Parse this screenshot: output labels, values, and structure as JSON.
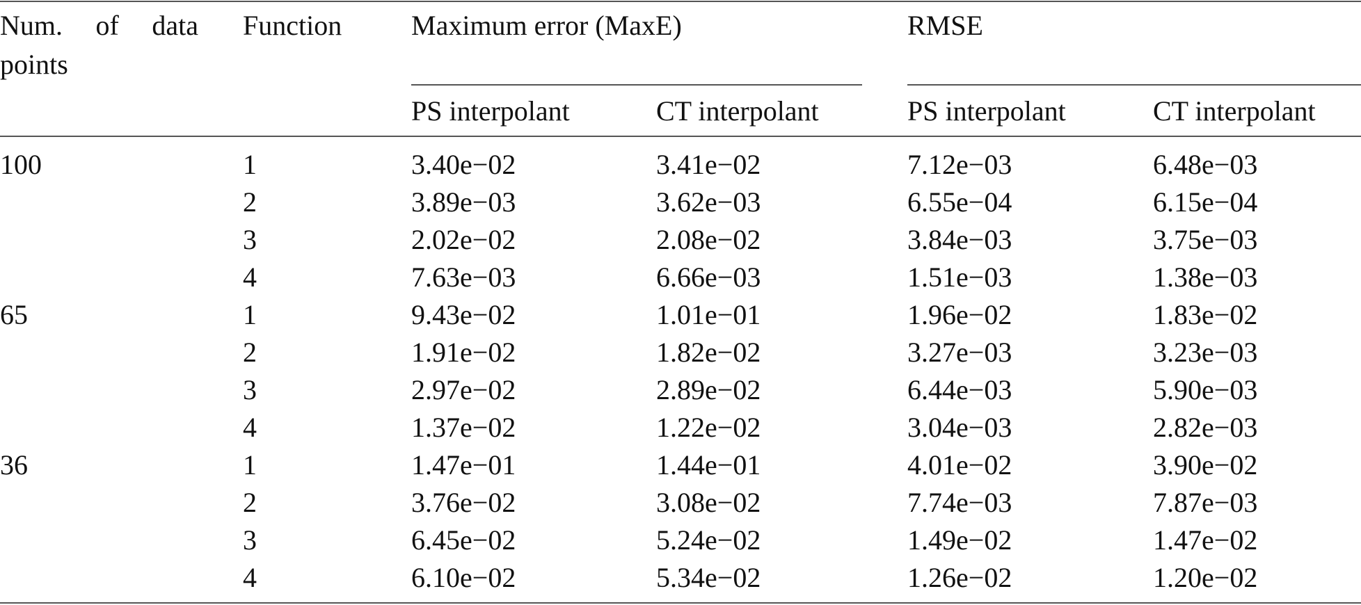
{
  "table": {
    "header": {
      "num_points": "Num. of data points",
      "function": "Function",
      "maxe": "Maximum error (MaxE)",
      "rmse": "RMSE",
      "sub": [
        "PS interpolant",
        "CT interpolant",
        "PS interpolant",
        "CT interpolant"
      ]
    },
    "groups": [
      {
        "points": "100",
        "rows": [
          [
            "1",
            "3.40e−02",
            "3.41e−02",
            "7.12e−03",
            "6.48e−03"
          ],
          [
            "2",
            "3.89e−03",
            "3.62e−03",
            "6.55e−04",
            "6.15e−04"
          ],
          [
            "3",
            "2.02e−02",
            "2.08e−02",
            "3.84e−03",
            "3.75e−03"
          ],
          [
            "4",
            "7.63e−03",
            "6.66e−03",
            "1.51e−03",
            "1.38e−03"
          ]
        ]
      },
      {
        "points": "65",
        "rows": [
          [
            "1",
            "9.43e−02",
            "1.01e−01",
            "1.96e−02",
            "1.83e−02"
          ],
          [
            "2",
            "1.91e−02",
            "1.82e−02",
            "3.27e−03",
            "3.23e−03"
          ],
          [
            "3",
            "2.97e−02",
            "2.89e−02",
            "6.44e−03",
            "5.90e−03"
          ],
          [
            "4",
            "1.37e−02",
            "1.22e−02",
            "3.04e−03",
            "2.82e−03"
          ]
        ]
      },
      {
        "points": "36",
        "rows": [
          [
            "1",
            "1.47e−01",
            "1.44e−01",
            "4.01e−02",
            "3.90e−02"
          ],
          [
            "2",
            "3.76e−02",
            "3.08e−02",
            "7.74e−03",
            "7.87e−03"
          ],
          [
            "3",
            "6.45e−02",
            "5.24e−02",
            "1.49e−02",
            "1.47e−02"
          ],
          [
            "4",
            "6.10e−02",
            "5.34e−02",
            "1.26e−02",
            "1.20e−02"
          ]
        ]
      }
    ]
  }
}
